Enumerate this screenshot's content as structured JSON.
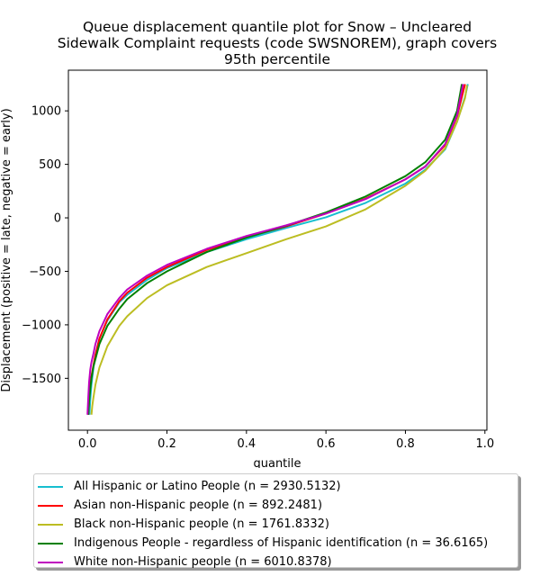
{
  "chart_data": {
    "type": "line",
    "title": "Queue displacement quantile plot for Snow – Uncleared\nSidewalk Complaint  requests (code SWSNOREM), graph covers\n95th percentile",
    "xlabel": "quantile",
    "ylabel": "Displacement (positive = late, negative = early)",
    "xlim": [
      -0.048,
      1.005
    ],
    "ylim": [
      -1985,
      1380
    ],
    "xticks": [
      0.0,
      0.2,
      0.4,
      0.6,
      0.8,
      1.0
    ],
    "xtick_labels": [
      "0.0",
      "0.2",
      "0.4",
      "0.6",
      "0.8",
      "1.0"
    ],
    "yticks": [
      -1500,
      -1000,
      -500,
      0,
      500,
      1000
    ],
    "ytick_labels": [
      "−1500",
      "−1000",
      "−500",
      "0",
      "500",
      "1000"
    ],
    "grid": false,
    "legend_position": "below",
    "series": [
      {
        "name": "All Hispanic or Latino People (n = 2930.5132)",
        "color": "#17becf",
        "x": [
          0.005,
          0.007,
          0.01,
          0.015,
          0.02,
          0.03,
          0.05,
          0.08,
          0.1,
          0.15,
          0.2,
          0.3,
          0.4,
          0.5,
          0.6,
          0.7,
          0.8,
          0.85,
          0.9,
          0.93,
          0.95,
          0.957
        ],
        "y": [
          -1840,
          -1700,
          -1560,
          -1400,
          -1280,
          -1130,
          -960,
          -790,
          -720,
          -580,
          -470,
          -320,
          -200,
          -95,
          5,
          140,
          320,
          450,
          640,
          900,
          1130,
          1250
        ]
      },
      {
        "name": "Asian non-Hispanic people (n = 892.2481)",
        "color": "#ff0000",
        "x": [
          0.002,
          0.004,
          0.007,
          0.01,
          0.015,
          0.02,
          0.03,
          0.05,
          0.08,
          0.1,
          0.15,
          0.2,
          0.3,
          0.4,
          0.5,
          0.6,
          0.7,
          0.8,
          0.85,
          0.9,
          0.93,
          0.95
        ],
        "y": [
          -1840,
          -1700,
          -1560,
          -1480,
          -1380,
          -1280,
          -1130,
          -950,
          -780,
          -700,
          -560,
          -460,
          -300,
          -180,
          -80,
          40,
          180,
          360,
          480,
          680,
          950,
          1250
        ]
      },
      {
        "name": "Black non-Hispanic people (n = 1761.8332)",
        "color": "#bcbd22",
        "x": [
          0.01,
          0.012,
          0.015,
          0.02,
          0.03,
          0.05,
          0.08,
          0.1,
          0.15,
          0.2,
          0.3,
          0.4,
          0.5,
          0.6,
          0.7,
          0.8,
          0.85,
          0.9,
          0.93,
          0.95,
          0.955
        ],
        "y": [
          -1840,
          -1760,
          -1680,
          -1560,
          -1400,
          -1200,
          -1010,
          -920,
          -750,
          -630,
          -460,
          -330,
          -200,
          -80,
          80,
          300,
          440,
          650,
          900,
          1120,
          1240
        ]
      },
      {
        "name": "Indigenous People - regardless of Hispanic identification (n = 36.6165)",
        "color": "#008000",
        "x": [
          0.002,
          0.004,
          0.007,
          0.01,
          0.015,
          0.02,
          0.03,
          0.05,
          0.08,
          0.1,
          0.15,
          0.2,
          0.3,
          0.4,
          0.5,
          0.6,
          0.7,
          0.8,
          0.85,
          0.9,
          0.93,
          0.942
        ],
        "y": [
          -1840,
          -1720,
          -1600,
          -1500,
          -1390,
          -1320,
          -1180,
          -1010,
          -850,
          -760,
          -610,
          -500,
          -320,
          -185,
          -75,
          50,
          200,
          390,
          520,
          730,
          1000,
          1250
        ]
      },
      {
        "name": "White non-Hispanic people (n = 6010.8378)",
        "color": "#bf00bf",
        "x": [
          0.0,
          0.002,
          0.004,
          0.007,
          0.01,
          0.015,
          0.02,
          0.03,
          0.05,
          0.08,
          0.1,
          0.15,
          0.2,
          0.3,
          0.4,
          0.5,
          0.6,
          0.7,
          0.8,
          0.85,
          0.9,
          0.93,
          0.945
        ],
        "y": [
          -1840,
          -1680,
          -1540,
          -1420,
          -1350,
          -1270,
          -1180,
          -1060,
          -900,
          -750,
          -670,
          -540,
          -440,
          -290,
          -170,
          -70,
          40,
          175,
          360,
          480,
          690,
          960,
          1250
        ]
      }
    ]
  }
}
